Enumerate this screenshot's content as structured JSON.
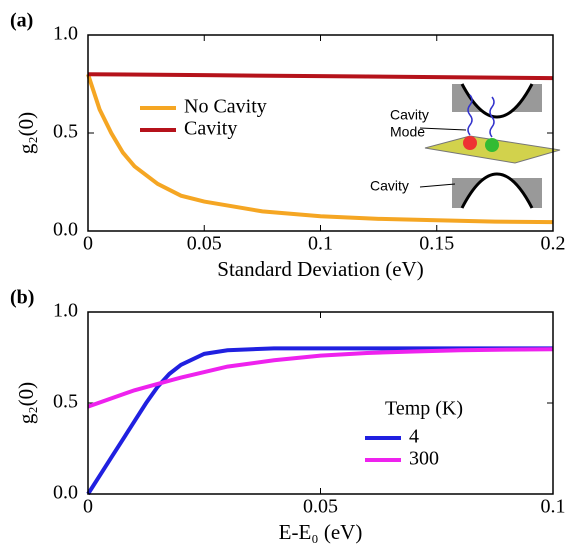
{
  "chart_data": [
    {
      "type": "line",
      "panel_label": "(a)",
      "xlabel": "Standard Deviation (eV)",
      "ylabel": "g₂(0)",
      "xlim": [
        0,
        0.2
      ],
      "ylim": [
        0,
        1
      ],
      "xticks": [
        0,
        0.05,
        0.1,
        0.15,
        0.2
      ],
      "yticks": [
        {
          "value": 0,
          "label": "0.0"
        },
        {
          "value": 0.5,
          "label": "0.5"
        },
        {
          "value": 1,
          "label": "1.0"
        }
      ],
      "series": [
        {
          "name": "No Cavity",
          "color": "#f5a623",
          "x": [
            0,
            0.005,
            0.01,
            0.015,
            0.02,
            0.03,
            0.04,
            0.05,
            0.075,
            0.1,
            0.125,
            0.15,
            0.175,
            0.2
          ],
          "values": [
            0.8,
            0.62,
            0.5,
            0.4,
            0.33,
            0.24,
            0.18,
            0.15,
            0.1,
            0.075,
            0.062,
            0.055,
            0.048,
            0.045
          ]
        },
        {
          "name": "Cavity",
          "color": "#b5121b",
          "x": [
            0,
            0.05,
            0.1,
            0.15,
            0.2
          ],
          "values": [
            0.8,
            0.795,
            0.79,
            0.785,
            0.78
          ]
        }
      ],
      "inset_labels": [
        "Cavity",
        "Mode",
        "Cavity"
      ]
    },
    {
      "type": "line",
      "panel_label": "(b)",
      "xlabel": "E-E₀ (eV)",
      "ylabel": "g₂(0)",
      "xlim": [
        0,
        0.1
      ],
      "ylim": [
        0,
        1
      ],
      "xticks": [
        0,
        0.05,
        0.1
      ],
      "yticks": [
        {
          "value": 0,
          "label": "0.0"
        },
        {
          "value": 0.5,
          "label": "0.5"
        },
        {
          "value": 1,
          "label": "1.0"
        }
      ],
      "legend_title": "Temp (K)",
      "series": [
        {
          "name": "4",
          "color": "#2020e0",
          "x": [
            0,
            0.0025,
            0.005,
            0.0075,
            0.01,
            0.0125,
            0.015,
            0.0175,
            0.02,
            0.025,
            0.03,
            0.04,
            0.06,
            0.08,
            0.1
          ],
          "values": [
            0,
            0.1,
            0.2,
            0.3,
            0.4,
            0.5,
            0.59,
            0.66,
            0.71,
            0.77,
            0.79,
            0.8,
            0.8,
            0.8,
            0.8
          ]
        },
        {
          "name": "300",
          "color": "#ee22ee",
          "x": [
            0,
            0.01,
            0.02,
            0.03,
            0.04,
            0.05,
            0.06,
            0.07,
            0.08,
            0.09,
            0.1
          ],
          "values": [
            0.48,
            0.57,
            0.64,
            0.7,
            0.735,
            0.76,
            0.775,
            0.783,
            0.79,
            0.793,
            0.795
          ]
        }
      ]
    }
  ]
}
